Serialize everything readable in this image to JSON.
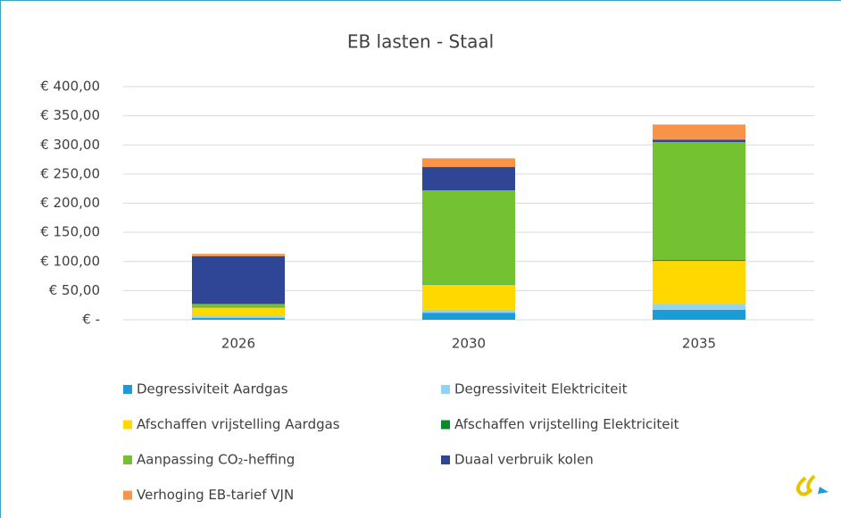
{
  "chart_data": {
    "type": "stacked_bar",
    "title": "EB lasten - Staal",
    "categories": [
      "2026",
      "2030",
      "2035"
    ],
    "series": [
      {
        "name": "Degressiviteit Aardgas",
        "color": "#1c9bd7",
        "values": [
          3,
          12,
          17
        ]
      },
      {
        "name": "Degressiviteit Elektriciteit",
        "color": "#8fd3f5",
        "values": [
          3,
          5,
          10
        ]
      },
      {
        "name": "Afschaffen vrijstelling Aardgas",
        "color": "#ffd800",
        "values": [
          15,
          43,
          74
        ]
      },
      {
        "name": "Afschaffen vrijstelling Elektriciteit",
        "color": "#0b8a2c",
        "values": [
          1,
          1,
          2
        ]
      },
      {
        "name": "Aanpassing CO₂-heffing",
        "color": "#74c231",
        "values": [
          5,
          161,
          202
        ]
      },
      {
        "name": "Duaal verbruik kolen",
        "color": "#2f4595",
        "values": [
          82,
          40,
          4
        ]
      },
      {
        "name": "Verhoging EB-tarief VJN",
        "color": "#f6944a",
        "values": [
          4,
          15,
          26
        ]
      }
    ],
    "ylim": [
      0,
      400
    ],
    "yticks": [
      {
        "value": 0,
        "label": "€ -"
      },
      {
        "value": 50,
        "label": "€ 50,00"
      },
      {
        "value": 100,
        "label": "€ 100,00"
      },
      {
        "value": 150,
        "label": "€ 150,00"
      },
      {
        "value": 200,
        "label": "€ 200,00"
      },
      {
        "value": 250,
        "label": "€ 250,00"
      },
      {
        "value": 300,
        "label": "€ 300,00"
      },
      {
        "value": 350,
        "label": "€ 350,00"
      },
      {
        "value": 400,
        "label": "€ 400,00"
      }
    ],
    "grid": true
  }
}
